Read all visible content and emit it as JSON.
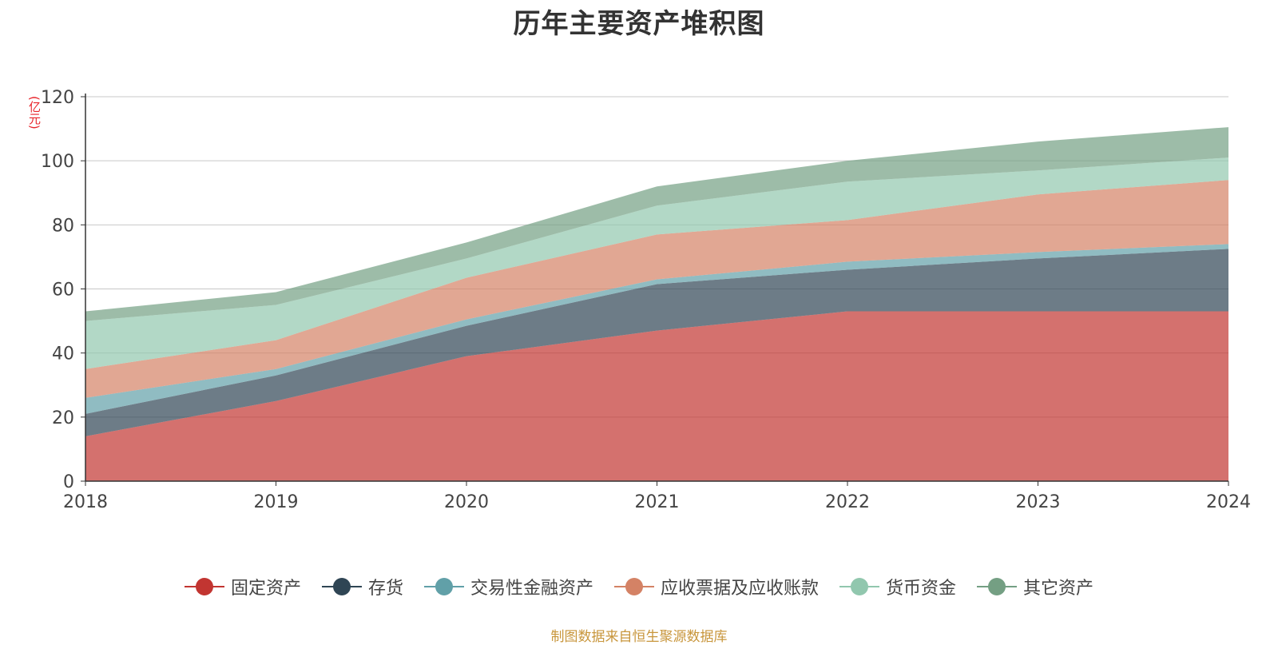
{
  "chart_data": {
    "type": "area",
    "stacked": true,
    "title": "历年主要资产堆积图",
    "unit_label": "(亿元)",
    "x": [
      "2018",
      "2019",
      "2020",
      "2021",
      "2022",
      "2023",
      "2024"
    ],
    "ylim": [
      0,
      120
    ],
    "yticks": [
      "0",
      "20",
      "40",
      "60",
      "80",
      "100",
      "120"
    ],
    "grid": true,
    "legend_position": "bottom",
    "series": [
      {
        "name": "固定资产",
        "color": "#c23531",
        "values": [
          14,
          25,
          39,
          47,
          53,
          53,
          53
        ]
      },
      {
        "name": "存货",
        "color": "#2f4554",
        "values": [
          7,
          8,
          9.5,
          14.5,
          13,
          16.5,
          19.5
        ]
      },
      {
        "name": "交易性金融资产",
        "color": "#61a0a8",
        "values": [
          5,
          2,
          2,
          1.5,
          2.5,
          2,
          1.5
        ]
      },
      {
        "name": "应收票据及应收账款",
        "color": "#d48265",
        "values": [
          9,
          9,
          13,
          14,
          13,
          18,
          20
        ]
      },
      {
        "name": "货币资金",
        "color": "#91c7ae",
        "values": [
          15,
          11,
          6,
          9,
          12,
          7.5,
          7
        ]
      },
      {
        "name": "其它资产",
        "color": "#749f83",
        "values": [
          3,
          4,
          5,
          6,
          6.5,
          9,
          9.5
        ]
      }
    ]
  },
  "source_note": "制图数据来自恒生聚源数据库"
}
